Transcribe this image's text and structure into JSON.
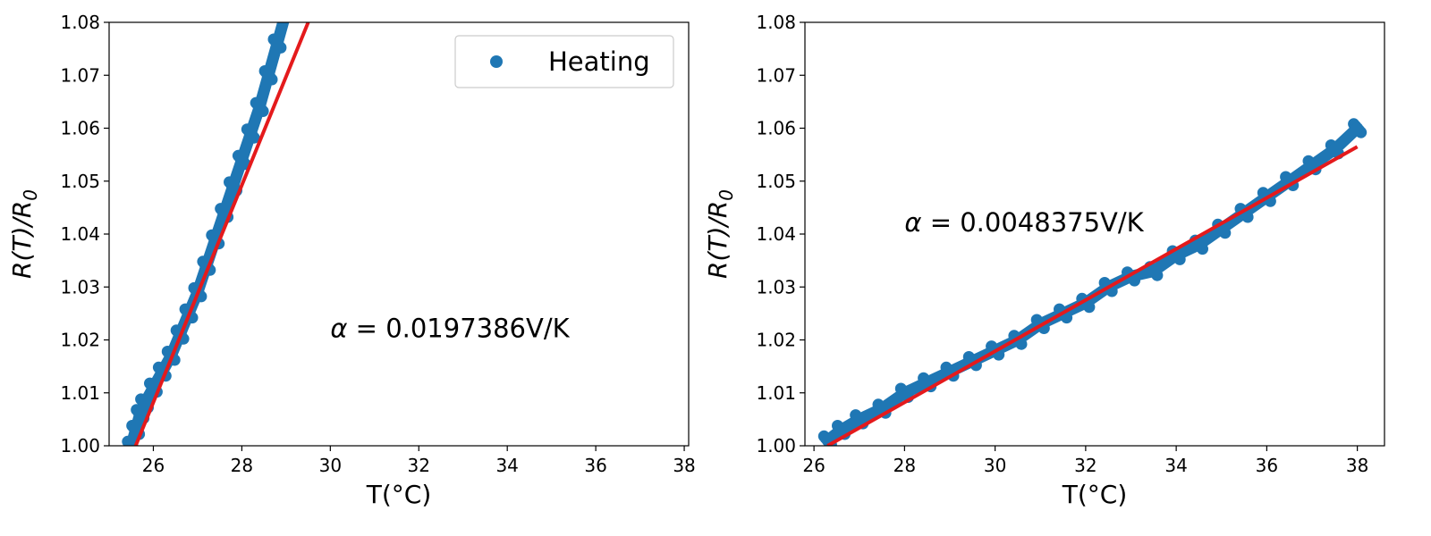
{
  "colors": {
    "data": "#1f77b4",
    "fit": "#e41a1c",
    "axis": "#000000"
  },
  "chart_data": [
    {
      "type": "scatter",
      "xlabel": "T(°C)",
      "ylabel_main": "R(T)/R",
      "ylabel_sub": "0",
      "xlim": [
        25,
        38.1
      ],
      "ylim": [
        1.0,
        1.08
      ],
      "xticks": [
        "26",
        "28",
        "30",
        "32",
        "34",
        "36",
        "38"
      ],
      "yticks": [
        "1.00",
        "1.01",
        "1.02",
        "1.03",
        "1.04",
        "1.05",
        "1.06",
        "1.07",
        "1.08"
      ],
      "legend": {
        "label": "Heating",
        "placement": "upper-right"
      },
      "annotation": {
        "alpha_symbol": "α",
        "text": " = 0.0197386V/K",
        "x": 30.0,
        "y": 1.0205
      },
      "series": [
        {
          "name": "Heating",
          "kind": "scatter",
          "x": [
            25.5,
            25.6,
            25.7,
            25.8,
            26.0,
            26.2,
            26.4,
            26.6,
            26.8,
            27.0,
            27.2,
            27.4,
            27.6,
            27.8,
            28.0,
            28.2,
            28.4,
            28.6,
            28.8,
            29.0
          ],
          "y": [
            1.0,
            1.003,
            1.006,
            1.008,
            1.011,
            1.014,
            1.017,
            1.021,
            1.025,
            1.029,
            1.034,
            1.039,
            1.044,
            1.049,
            1.054,
            1.059,
            1.064,
            1.07,
            1.076,
            1.082
          ]
        },
        {
          "kind": "fit",
          "x": [
            25.6,
            29.5
          ],
          "y": [
            1.0,
            1.08
          ]
        }
      ]
    },
    {
      "type": "scatter",
      "xlabel": "T(°C)",
      "ylabel_main": "R(T)/R",
      "ylabel_sub": "0",
      "xlim": [
        25.8,
        38.6
      ],
      "ylim": [
        1.0,
        1.08
      ],
      "xticks": [
        "26",
        "28",
        "30",
        "32",
        "34",
        "36",
        "38"
      ],
      "yticks": [
        "1.00",
        "1.01",
        "1.02",
        "1.03",
        "1.04",
        "1.05",
        "1.06",
        "1.07",
        "1.08"
      ],
      "annotation": {
        "alpha_symbol": "α",
        "text": " = 0.0048375V/K",
        "x": 28.0,
        "y": 1.0405
      },
      "series": [
        {
          "kind": "scatter",
          "x": [
            26.3,
            26.6,
            27.0,
            27.5,
            28.0,
            28.5,
            29.0,
            29.5,
            30.0,
            30.5,
            31.0,
            31.5,
            32.0,
            32.5,
            33.0,
            33.5,
            34.0,
            34.5,
            35.0,
            35.5,
            36.0,
            36.5,
            37.0,
            37.5,
            38.0
          ],
          "y": [
            1.001,
            1.003,
            1.005,
            1.007,
            1.01,
            1.012,
            1.014,
            1.016,
            1.018,
            1.02,
            1.023,
            1.025,
            1.027,
            1.03,
            1.032,
            1.033,
            1.036,
            1.038,
            1.041,
            1.044,
            1.047,
            1.05,
            1.053,
            1.056,
            1.06
          ]
        },
        {
          "kind": "fit",
          "x": [
            26.3,
            38.0
          ],
          "y": [
            1.0,
            1.0565
          ]
        }
      ]
    }
  ]
}
